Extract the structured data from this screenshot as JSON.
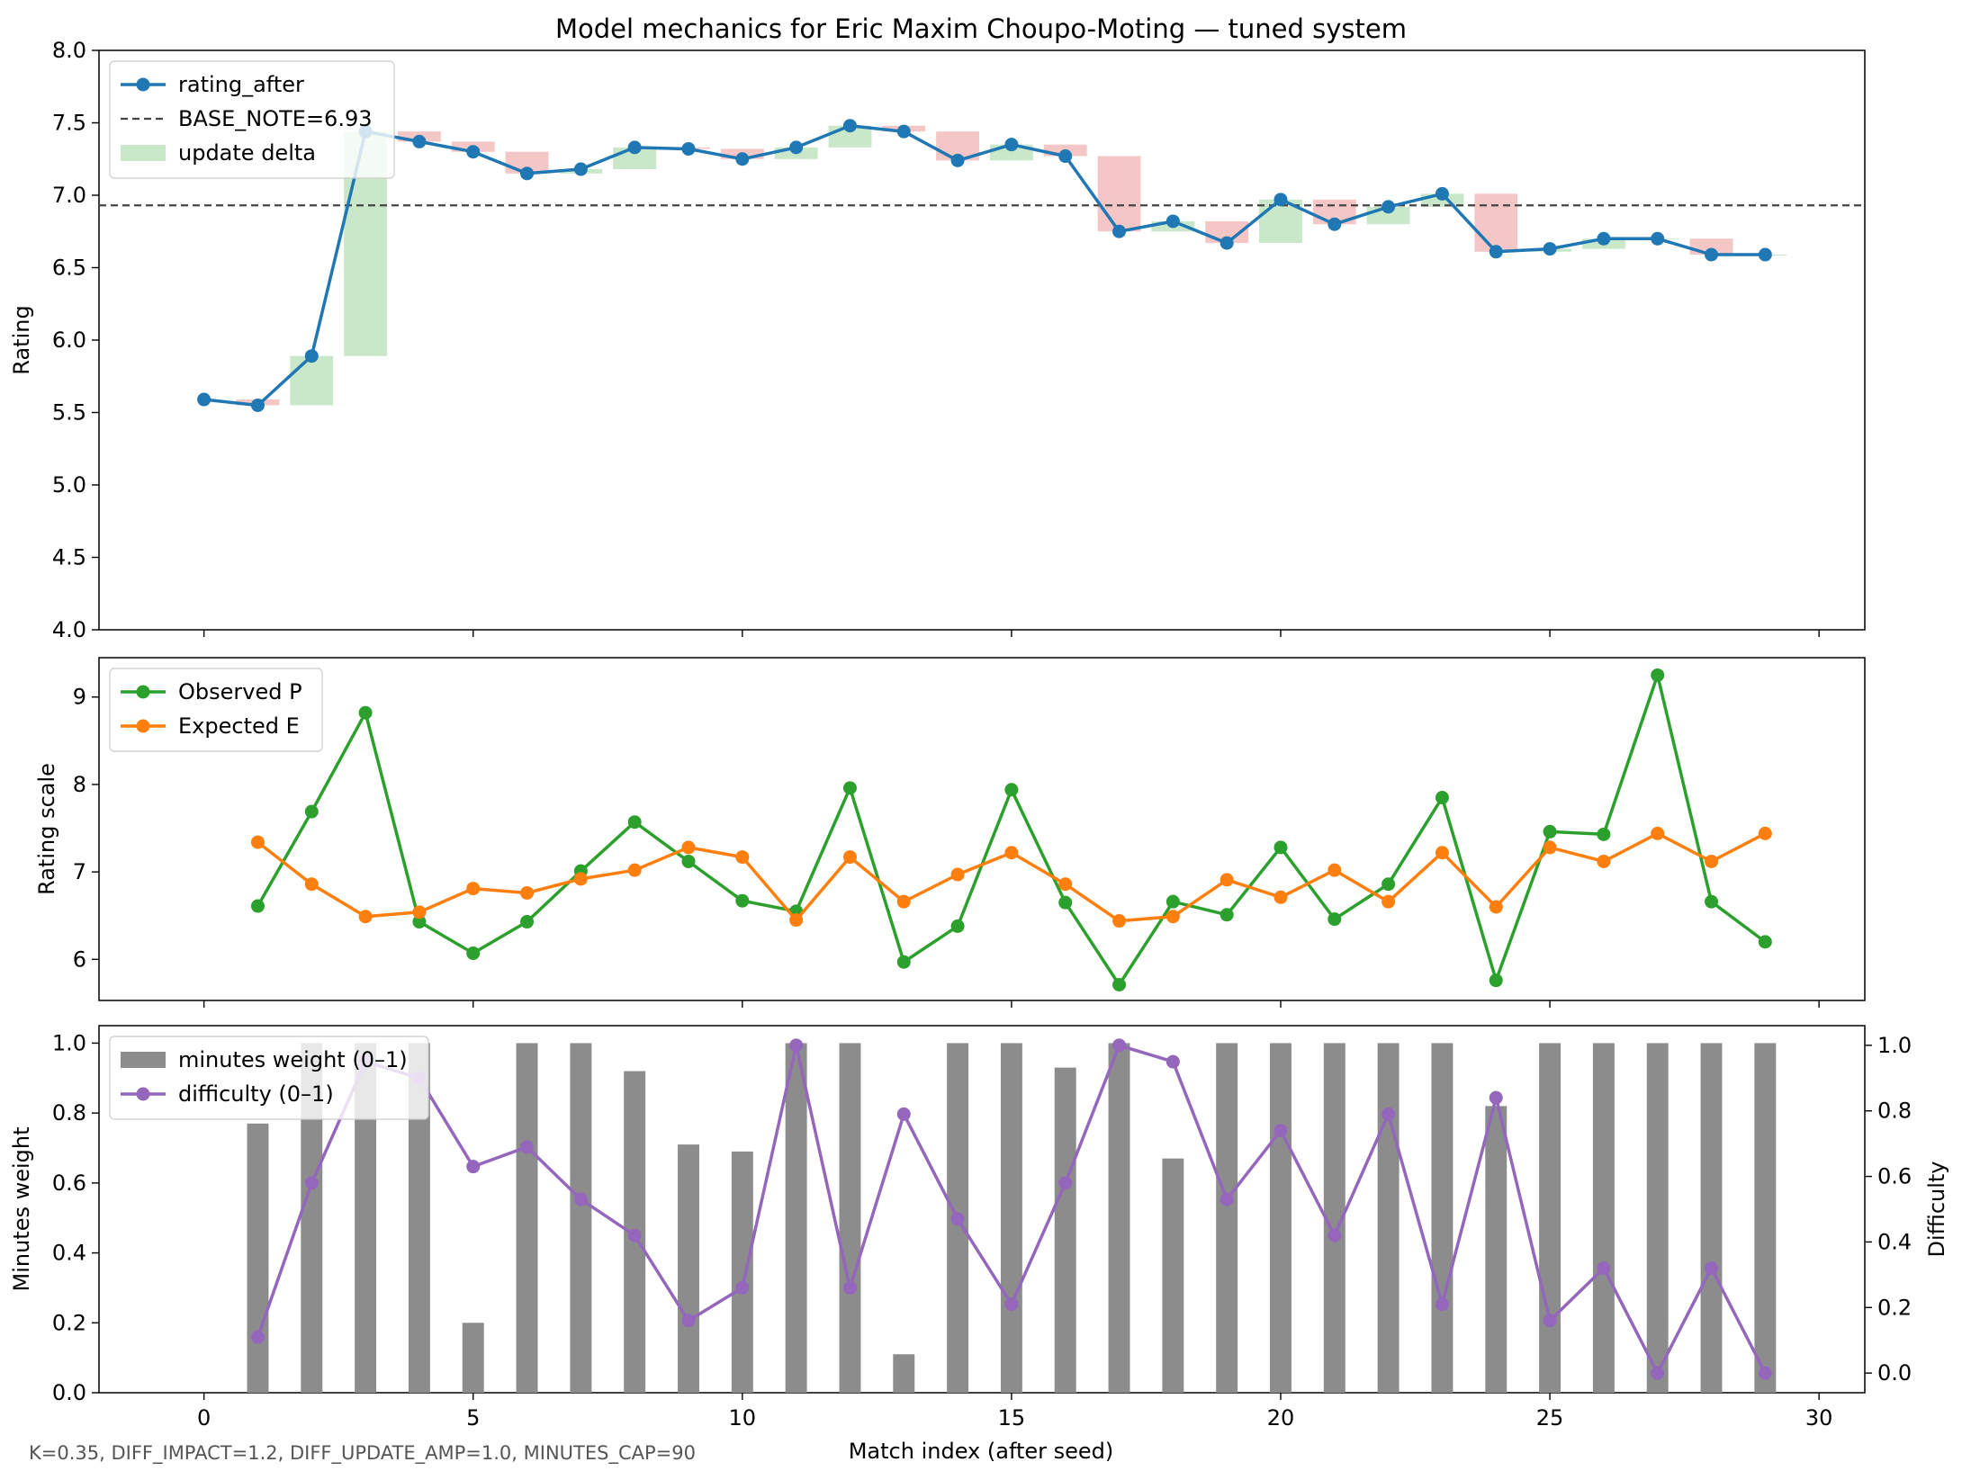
{
  "title": "Model mechanics for Eric Maxim Choupo-Moting — tuned system",
  "footnote": "K=0.35, DIFF_IMPACT=1.2, DIFF_UPDATE_AMP=1.0, MINUTES_CAP=90",
  "xlabel": "Match index (after seed)",
  "colors": {
    "rating": "#1f77b4",
    "observed": "#2ca02c",
    "expected": "#ff7f0e",
    "difficulty": "#9467bd",
    "minutes": "#8c8c8c",
    "delta_up": "#c9e8c9",
    "delta_down": "#f4c6c6",
    "base": "#444444"
  },
  "chart_data": [
    {
      "type": "line",
      "panel": "top",
      "ylabel": "Rating",
      "xlim": [
        -1.95,
        30.85
      ],
      "ylim": [
        4.0,
        8.0
      ],
      "yticks": [
        "4.0",
        "4.5",
        "5.0",
        "5.5",
        "6.0",
        "6.5",
        "7.0",
        "7.5",
        "8.0"
      ],
      "grid": false,
      "legend_position": "top-left",
      "legend": [
        "rating_after",
        "BASE_NOTE=6.93",
        "update delta"
      ],
      "base_note": 6.93,
      "x": [
        0,
        1,
        2,
        3,
        4,
        5,
        6,
        7,
        8,
        9,
        10,
        11,
        12,
        13,
        14,
        15,
        16,
        17,
        18,
        19,
        20,
        21,
        22,
        23,
        24,
        25,
        26,
        27,
        28,
        29
      ],
      "series": [
        {
          "name": "rating_after",
          "values": [
            5.59,
            5.55,
            5.89,
            7.44,
            7.37,
            7.3,
            7.15,
            7.18,
            7.33,
            7.32,
            7.25,
            7.33,
            7.48,
            7.44,
            7.24,
            7.35,
            7.27,
            6.75,
            6.82,
            6.67,
            6.97,
            6.8,
            6.92,
            7.01,
            6.61,
            6.63,
            6.7,
            6.7,
            6.59,
            6.59
          ]
        }
      ]
    },
    {
      "type": "line",
      "panel": "middle",
      "ylabel": "Rating scale",
      "xlim": [
        -1.95,
        30.85
      ],
      "ylim": [
        5.53,
        9.45
      ],
      "yticks": [
        "6",
        "7",
        "8",
        "9"
      ],
      "grid": false,
      "legend_position": "top-left",
      "x": [
        1,
        2,
        3,
        4,
        5,
        6,
        7,
        8,
        9,
        10,
        11,
        12,
        13,
        14,
        15,
        16,
        17,
        18,
        19,
        20,
        21,
        22,
        23,
        24,
        25,
        26,
        27,
        28,
        29
      ],
      "series": [
        {
          "name": "Observed P",
          "values": [
            6.61,
            7.69,
            8.82,
            6.43,
            6.07,
            6.43,
            7.01,
            7.57,
            7.12,
            6.67,
            6.55,
            7.96,
            5.97,
            6.38,
            7.94,
            6.65,
            5.71,
            6.66,
            6.51,
            7.28,
            6.46,
            6.86,
            7.85,
            5.76,
            7.46,
            7.43,
            9.25,
            6.66,
            6.2
          ]
        },
        {
          "name": "Expected E",
          "values": [
            7.34,
            6.86,
            6.49,
            6.54,
            6.81,
            6.76,
            6.92,
            7.02,
            7.28,
            7.17,
            6.45,
            7.17,
            6.66,
            6.97,
            7.22,
            6.86,
            6.44,
            6.49,
            6.91,
            6.71,
            7.02,
            6.66,
            7.22,
            6.6,
            7.28,
            7.12,
            7.44,
            7.12,
            7.44
          ]
        }
      ]
    },
    {
      "type": "bar",
      "panel": "bottom",
      "ylabel": "Minutes weight",
      "ylabel_right": "Difficulty",
      "xlim": [
        -1.95,
        30.85
      ],
      "ylim": [
        0.0,
        1.05
      ],
      "ylim_right": [
        -0.06,
        1.06
      ],
      "yticks": [
        "0.0",
        "0.2",
        "0.4",
        "0.6",
        "0.8",
        "1.0"
      ],
      "xticks": [
        "0",
        "5",
        "10",
        "15",
        "20",
        "25",
        "30"
      ],
      "grid": false,
      "legend_position": "top-left",
      "x": [
        1,
        2,
        3,
        4,
        5,
        6,
        7,
        8,
        9,
        10,
        11,
        12,
        13,
        14,
        15,
        16,
        17,
        18,
        19,
        20,
        21,
        22,
        23,
        24,
        25,
        26,
        27,
        28,
        29
      ],
      "series": [
        {
          "name": "minutes weight (0–1)",
          "axis": "left",
          "values": [
            0.77,
            1.0,
            1.0,
            1.0,
            0.2,
            1.0,
            1.0,
            0.92,
            0.71,
            0.69,
            1.0,
            1.0,
            0.11,
            1.0,
            1.0,
            0.93,
            1.0,
            0.67,
            1.0,
            1.0,
            1.0,
            1.0,
            1.0,
            0.82,
            1.0,
            1.0,
            1.0,
            1.0,
            1.0
          ]
        },
        {
          "name": "difficulty (0–1)",
          "axis": "right",
          "values": [
            0.11,
            0.58,
            0.95,
            0.9,
            0.63,
            0.69,
            0.53,
            0.42,
            0.16,
            0.26,
            1.0,
            0.26,
            0.79,
            0.47,
            0.21,
            0.58,
            1.0,
            0.95,
            0.53,
            0.74,
            0.42,
            0.79,
            0.21,
            0.84,
            0.16,
            0.32,
            0.0,
            0.32,
            0.0
          ]
        }
      ]
    }
  ]
}
